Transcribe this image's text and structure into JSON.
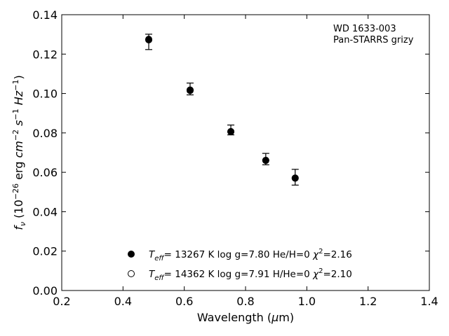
{
  "chart_data": {
    "type": "scatter",
    "annotation": [
      "WD 1633-003",
      "Pan-STARRS grizy"
    ],
    "xlabel": "Wavelength (μm)",
    "ylabel": "f_ν (10^-26 erg cm^-2 s^-1 Hz^-1)",
    "xlim": [
      0.2,
      1.4
    ],
    "ylim": [
      0.0,
      0.14
    ],
    "x_ticks": [
      "0.2",
      "0.4",
      "0.6",
      "0.8",
      "1.0",
      "1.2",
      "1.4"
    ],
    "y_ticks": [
      "0.00",
      "0.02",
      "0.04",
      "0.06",
      "0.08",
      "0.10",
      "0.12",
      "0.14"
    ],
    "observed": {
      "x": [
        0.484,
        0.619,
        0.752,
        0.866,
        0.962
      ],
      "y": [
        0.1262,
        0.1023,
        0.0815,
        0.0667,
        0.0575
      ],
      "err": [
        0.0039,
        0.003,
        0.0025,
        0.0029,
        0.004
      ]
    },
    "series": [
      {
        "marker": "filled",
        "color": "#000000",
        "label": {
          "teff": "T_eff= 13267 K",
          "logg": "log g=7.80",
          "comp": "He/H=0",
          "chi": "χ²=2.16"
        },
        "x": [
          0.484,
          0.619,
          0.752,
          0.866,
          0.962
        ],
        "y": [
          0.1275,
          0.1018,
          0.0807,
          0.066,
          0.057
        ]
      },
      {
        "marker": "open",
        "color": "#000000",
        "label": {
          "teff": "T_eff= 14362 K",
          "logg": "log g=7.91",
          "comp": "H/He=0",
          "chi": "χ²=2.10"
        },
        "x": [
          0.484,
          0.619,
          0.752,
          0.866,
          0.962
        ],
        "y": [
          0.1272,
          0.1015,
          0.0806,
          0.0661,
          0.0571
        ]
      }
    ],
    "legend_position": "lower-center",
    "grid": false
  }
}
